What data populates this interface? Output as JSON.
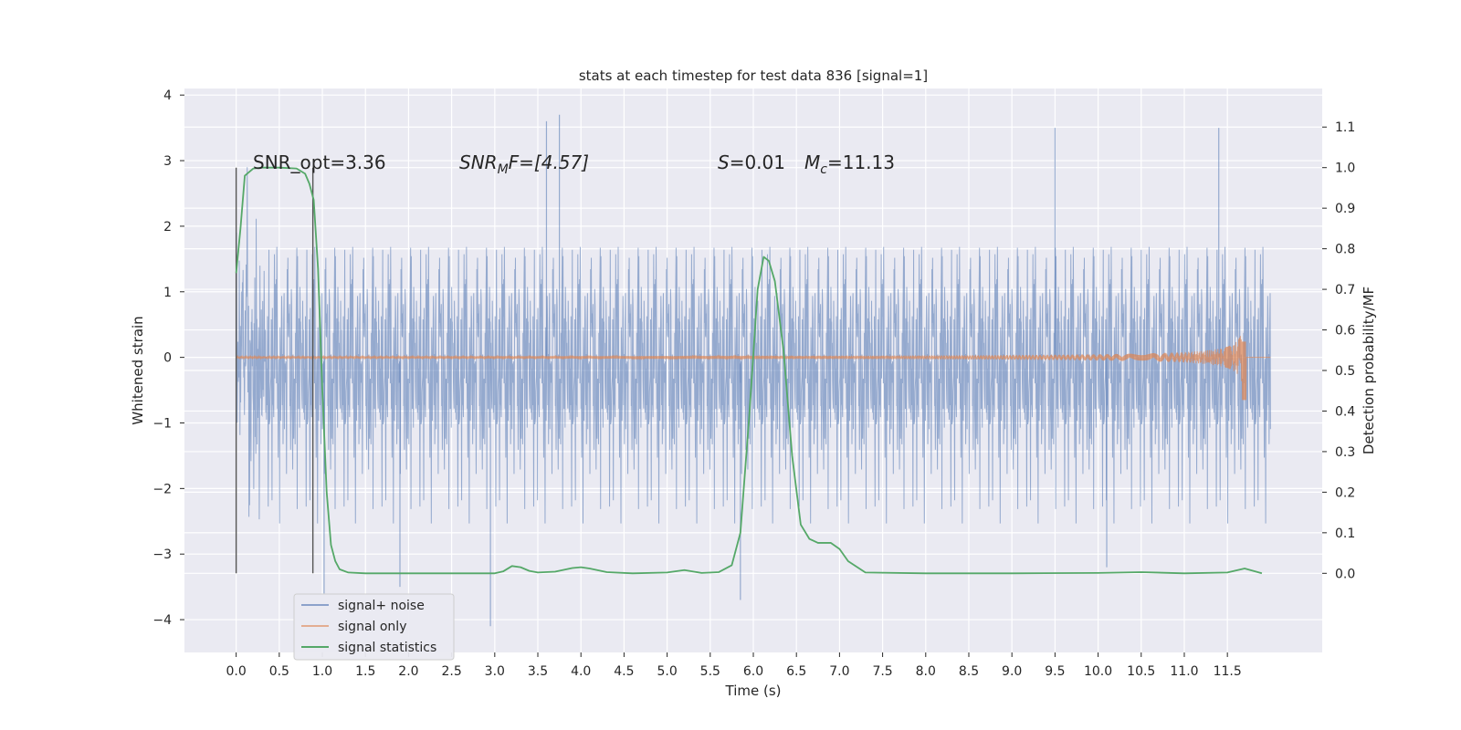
{
  "chart_data": {
    "type": "line",
    "title": "stats at each timestep for test data 836 [signal=1]",
    "xlabel": "Time (s)",
    "ylabel": "Whitened strain",
    "y2label": "Detection probability/MF",
    "xlim": [
      -0.6,
      12.6
    ],
    "ylim": [
      -4.5,
      4.1
    ],
    "y2lim": [
      -0.195,
      1.195
    ],
    "x_ticks": [
      "0.0",
      "0.5",
      "1.0",
      "1.5",
      "2.0",
      "2.5",
      "3.0",
      "3.5",
      "4.0",
      "4.5",
      "5.0",
      "5.5",
      "6.0",
      "6.5",
      "7.0",
      "7.5",
      "8.0",
      "8.5",
      "9.0",
      "9.5",
      "10.0",
      "10.5",
      "11.0",
      "11.5"
    ],
    "y_ticks": [
      "4",
      "3",
      "2",
      "1",
      "0",
      "−1",
      "−2",
      "−3",
      "−4"
    ],
    "y2_ticks": [
      "1.1",
      "1.0",
      "0.9",
      "0.8",
      "0.7",
      "0.6",
      "0.5",
      "0.4",
      "0.3",
      "0.2",
      "0.1",
      "0.0"
    ],
    "grid": true,
    "legend_position": "lower-left",
    "annotations": {
      "snr_opt": "SNR_opt=3.36",
      "snr_mf_main": "SNR",
      "snr_mf_sub": "M",
      "snr_mf_rest": "F=[4.57]",
      "s_main": "S",
      "s_rest": "=0.01",
      "mc_main": "M",
      "mc_sub": "c",
      "mc_rest": "=11.13"
    },
    "vertical_markers": [
      0.0,
      0.89
    ],
    "series": [
      {
        "name": "signal+ noise",
        "color": "#4c72b0",
        "t_range": [
          0.0,
          12.0
        ],
        "envelope_sigma": 1.0,
        "spikes": [
          {
            "x": 3.6,
            "y": 3.6
          },
          {
            "x": 3.75,
            "y": 3.7
          },
          {
            "x": 9.5,
            "y": 3.5
          },
          {
            "x": 11.4,
            "y": 3.5
          },
          {
            "x": 2.95,
            "y": -4.1
          },
          {
            "x": 5.85,
            "y": -3.7
          },
          {
            "x": 1.02,
            "y": -3.6
          },
          {
            "x": 10.1,
            "y": -3.2
          },
          {
            "x": 1.9,
            "y": -3.5
          }
        ]
      },
      {
        "name": "signal only",
        "color": "#dd8452",
        "t_range": [
          0.0,
          12.0
        ],
        "peak_time": 11.67,
        "peak_amplitude": 0.4,
        "trough_amplitude": -0.65
      },
      {
        "name": "signal statistics",
        "color": "#55a868",
        "axis": "right",
        "x": [
          0.0,
          0.05,
          0.1,
          0.2,
          0.3,
          0.5,
          0.7,
          0.8,
          0.85,
          0.9,
          0.95,
          1.0,
          1.05,
          1.1,
          1.15,
          1.2,
          1.3,
          1.5,
          2.0,
          2.5,
          3.0,
          3.1,
          3.2,
          3.3,
          3.4,
          3.5,
          3.7,
          3.9,
          4.0,
          4.1,
          4.3,
          4.6,
          5.0,
          5.2,
          5.4,
          5.6,
          5.75,
          5.85,
          5.95,
          6.05,
          6.12,
          6.18,
          6.25,
          6.35,
          6.45,
          6.55,
          6.65,
          6.75,
          6.9,
          7.0,
          7.1,
          7.3,
          8.0,
          9.0,
          10.0,
          10.5,
          11.0,
          11.5,
          11.7,
          11.9
        ],
        "y": [
          0.74,
          0.85,
          0.98,
          0.998,
          1.0,
          1.0,
          0.998,
          0.985,
          0.96,
          0.92,
          0.75,
          0.45,
          0.2,
          0.07,
          0.03,
          0.01,
          0.002,
          0.0,
          0.0,
          0.0,
          0.0,
          0.005,
          0.018,
          0.015,
          0.006,
          0.002,
          0.004,
          0.013,
          0.015,
          0.012,
          0.003,
          0.0,
          0.002,
          0.008,
          0.001,
          0.003,
          0.02,
          0.1,
          0.38,
          0.7,
          0.78,
          0.77,
          0.72,
          0.55,
          0.29,
          0.12,
          0.085,
          0.075,
          0.075,
          0.06,
          0.03,
          0.002,
          0.0,
          0.0,
          0.001,
          0.003,
          0.0,
          0.002,
          0.012,
          0.0
        ]
      }
    ]
  }
}
